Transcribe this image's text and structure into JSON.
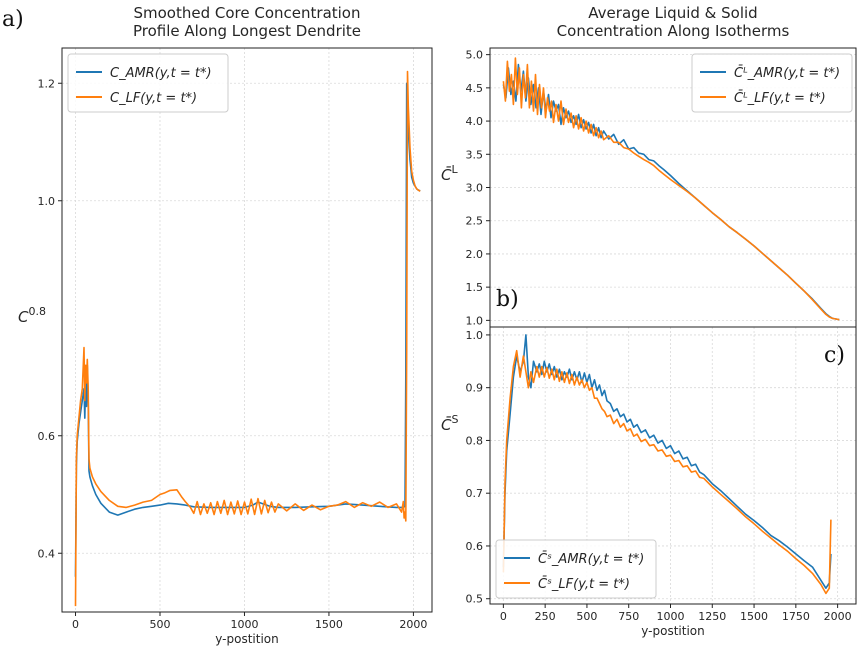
{
  "chart_data": [
    {
      "id": "a",
      "type": "line",
      "panel_label": "a)",
      "title": [
        "Smoothed Core Concentration",
        "Profile Along Longest Dendrite"
      ],
      "xlabel": "y-postition",
      "ylabel": "C",
      "ylabel_sup": "0.8",
      "xlim": [
        -80,
        2110
      ],
      "ylim": [
        0.3,
        1.26
      ],
      "xticks": [
        0,
        500,
        1000,
        1500,
        2000
      ],
      "yticks": [
        0.4,
        0.6,
        1.0,
        1.2
      ],
      "ytick_labels": [
        "0.4",
        "0.6",
        "1.0",
        "1.2"
      ],
      "legend_position": "upper-left",
      "series": [
        {
          "name": "C_AMR(y, t = t*)",
          "legend_label": "C_AMR(y,t = t*)",
          "color": "#1f77b4",
          "x": [
            0,
            5,
            10,
            20,
            30,
            40,
            50,
            55,
            60,
            65,
            70,
            75,
            80,
            85,
            90,
            100,
            120,
            150,
            200,
            250,
            300,
            350,
            400,
            450,
            500,
            550,
            600,
            650,
            700,
            800,
            900,
            1000,
            1050,
            1080,
            1100,
            1150,
            1200,
            1300,
            1400,
            1500,
            1600,
            1700,
            1800,
            1900,
            1940,
            1950,
            1955,
            1960,
            1965,
            1970,
            1980,
            1990,
            2000,
            2010,
            2020,
            2030,
            2040
          ],
          "y": [
            0.36,
            0.55,
            0.59,
            0.62,
            0.64,
            0.66,
            0.68,
            0.63,
            0.7,
            0.65,
            0.72,
            0.66,
            0.54,
            0.53,
            0.525,
            0.515,
            0.5,
            0.485,
            0.47,
            0.465,
            0.47,
            0.475,
            0.478,
            0.48,
            0.482,
            0.485,
            0.484,
            0.482,
            0.479,
            0.478,
            0.478,
            0.478,
            0.482,
            0.487,
            0.485,
            0.48,
            0.478,
            0.478,
            0.479,
            0.48,
            0.484,
            0.482,
            0.48,
            0.478,
            0.478,
            0.48,
            0.7,
            1.2,
            1.18,
            1.12,
            1.07,
            1.04,
            1.03,
            1.025,
            1.02,
            1.018,
            1.017
          ]
        },
        {
          "name": "C_LF(y, t = t*)",
          "legend_label": "C_LF(y,t = t*)",
          "color": "#ff7f0e",
          "x": [
            0,
            5,
            10,
            20,
            30,
            40,
            50,
            55,
            60,
            65,
            70,
            75,
            80,
            85,
            90,
            100,
            120,
            150,
            200,
            250,
            300,
            350,
            400,
            450,
            500,
            530,
            560,
            600,
            630,
            650,
            680,
            700,
            720,
            740,
            760,
            780,
            800,
            820,
            840,
            860,
            880,
            900,
            920,
            940,
            960,
            980,
            1000,
            1020,
            1040,
            1060,
            1080,
            1100,
            1120,
            1140,
            1160,
            1180,
            1200,
            1250,
            1300,
            1350,
            1400,
            1450,
            1500,
            1550,
            1600,
            1650,
            1700,
            1750,
            1800,
            1850,
            1900,
            1930,
            1940,
            1945,
            1950,
            1955,
            1960,
            1965,
            1970,
            1980,
            1990,
            2000,
            2010,
            2020,
            2030,
            2040
          ],
          "y": [
            0.31,
            0.56,
            0.6,
            0.63,
            0.66,
            0.68,
            0.75,
            0.66,
            0.72,
            0.69,
            0.73,
            0.68,
            0.56,
            0.545,
            0.54,
            0.53,
            0.518,
            0.505,
            0.49,
            0.48,
            0.478,
            0.482,
            0.487,
            0.49,
            0.5,
            0.503,
            0.507,
            0.508,
            0.495,
            0.488,
            0.478,
            0.468,
            0.488,
            0.466,
            0.484,
            0.468,
            0.486,
            0.466,
            0.488,
            0.468,
            0.49,
            0.466,
            0.487,
            0.467,
            0.489,
            0.466,
            0.487,
            0.467,
            0.492,
            0.466,
            0.493,
            0.467,
            0.49,
            0.469,
            0.487,
            0.47,
            0.484,
            0.472,
            0.484,
            0.473,
            0.482,
            0.474,
            0.48,
            0.482,
            0.488,
            0.478,
            0.486,
            0.48,
            0.487,
            0.478,
            0.484,
            0.47,
            0.488,
            0.46,
            0.47,
            0.455,
            0.75,
            1.22,
            1.16,
            1.09,
            1.05,
            1.035,
            1.025,
            1.02,
            1.018,
            1.016
          ]
        }
      ]
    },
    {
      "id": "b",
      "type": "line",
      "panel_label": "b)",
      "title": [
        "Average Liquid & Solid",
        "Concentration Along Isotherms"
      ],
      "xlabel": "",
      "ylabel": "C̄",
      "ylabel_sup": "L",
      "xlim": [
        -80,
        2110
      ],
      "ylim": [
        0.9,
        5.1
      ],
      "xticks": [],
      "yticks": [
        1.0,
        1.5,
        2.0,
        2.5,
        3.0,
        3.5,
        4.0,
        4.5,
        5.0
      ],
      "ytick_labels": [
        "1.0",
        "1.5",
        "2.0",
        "2.5",
        "3.0",
        "3.5",
        "4.0",
        "4.5",
        "5.0"
      ],
      "legend_position": "upper-right",
      "series": [
        {
          "name": "C̄L_AMR(y, t = t*)",
          "legend_label": "C̄ᴸ_AMR(y,t = t*)",
          "color": "#1f77b4",
          "x": [
            0,
            15,
            30,
            45,
            60,
            75,
            90,
            105,
            120,
            135,
            150,
            165,
            180,
            195,
            210,
            225,
            240,
            255,
            270,
            285,
            300,
            315,
            330,
            345,
            360,
            375,
            390,
            405,
            420,
            435,
            450,
            465,
            480,
            495,
            510,
            525,
            540,
            555,
            570,
            585,
            600,
            630,
            660,
            690,
            720,
            750,
            780,
            810,
            840,
            870,
            900,
            930,
            960,
            1000,
            1050,
            1100,
            1150,
            1200,
            1250,
            1300,
            1350,
            1400,
            1450,
            1500,
            1550,
            1600,
            1650,
            1700,
            1750,
            1800,
            1850,
            1900,
            1930,
            1950,
            1970,
            1990,
            2010
          ],
          "y": [
            4.55,
            4.35,
            4.8,
            4.4,
            4.6,
            4.3,
            4.85,
            4.45,
            4.75,
            4.3,
            4.65,
            4.25,
            4.55,
            4.2,
            4.5,
            4.1,
            4.45,
            4.15,
            4.4,
            4.05,
            4.3,
            4.15,
            4.25,
            3.95,
            4.2,
            4.05,
            4.15,
            3.98,
            4.08,
            3.95,
            4.1,
            3.9,
            4.02,
            3.88,
            3.98,
            3.82,
            3.95,
            3.78,
            3.9,
            3.75,
            3.85,
            3.73,
            3.8,
            3.65,
            3.72,
            3.58,
            3.6,
            3.52,
            3.5,
            3.42,
            3.4,
            3.33,
            3.27,
            3.18,
            3.06,
            2.95,
            2.84,
            2.73,
            2.62,
            2.52,
            2.41,
            2.32,
            2.22,
            2.12,
            2.01,
            1.9,
            1.79,
            1.68,
            1.56,
            1.44,
            1.32,
            1.18,
            1.1,
            1.06,
            1.03,
            1.02,
            1.01
          ]
        },
        {
          "name": "C̄L_LF(y, t = t*)",
          "legend_label": "C̄ᴸ_LF(y,t = t*)",
          "color": "#ff7f0e",
          "x": [
            0,
            12,
            24,
            36,
            48,
            60,
            72,
            84,
            96,
            108,
            120,
            132,
            144,
            156,
            168,
            180,
            192,
            204,
            216,
            228,
            240,
            252,
            264,
            276,
            288,
            300,
            315,
            330,
            345,
            360,
            375,
            390,
            405,
            420,
            435,
            450,
            465,
            480,
            495,
            510,
            525,
            540,
            555,
            570,
            585,
            600,
            630,
            660,
            690,
            720,
            750,
            780,
            810,
            840,
            870,
            900,
            930,
            960,
            1000,
            1050,
            1100,
            1150,
            1200,
            1250,
            1300,
            1350,
            1400,
            1450,
            1500,
            1550,
            1600,
            1650,
            1700,
            1750,
            1800,
            1850,
            1900,
            1930,
            1950,
            1970,
            1990,
            2010
          ],
          "y": [
            4.6,
            4.3,
            4.9,
            4.45,
            4.7,
            4.25,
            4.95,
            4.4,
            4.8,
            4.2,
            4.7,
            4.35,
            4.85,
            4.2,
            4.6,
            4.15,
            4.7,
            4.1,
            4.55,
            4.2,
            4.5,
            4.05,
            4.35,
            4.15,
            4.3,
            3.98,
            4.25,
            4.0,
            4.3,
            3.95,
            4.18,
            3.98,
            4.12,
            3.9,
            4.08,
            3.88,
            4.05,
            3.85,
            4.0,
            3.82,
            3.95,
            3.78,
            3.9,
            3.75,
            3.85,
            3.72,
            3.78,
            3.68,
            3.68,
            3.6,
            3.58,
            3.52,
            3.47,
            3.42,
            3.38,
            3.33,
            3.26,
            3.2,
            3.12,
            3.03,
            2.94,
            2.84,
            2.73,
            2.62,
            2.52,
            2.41,
            2.32,
            2.22,
            2.12,
            2.01,
            1.9,
            1.79,
            1.68,
            1.56,
            1.44,
            1.31,
            1.17,
            1.09,
            1.05,
            1.03,
            1.02,
            1.01
          ]
        }
      ]
    },
    {
      "id": "c",
      "type": "line",
      "panel_label": "c)",
      "title": [],
      "xlabel": "y-postition",
      "ylabel": "C̄",
      "ylabel_sup": "S",
      "xlim": [
        -80,
        2110
      ],
      "ylim": [
        0.49,
        1.015
      ],
      "xticks": [
        0,
        250,
        500,
        750,
        1000,
        1250,
        1500,
        1750,
        2000
      ],
      "yticks": [
        0.5,
        0.6,
        0.7,
        0.8,
        0.9,
        1.0
      ],
      "ytick_labels": [
        "0.5",
        "0.6",
        "0.7",
        "0.8",
        "0.9",
        "1.0"
      ],
      "legend_position": "lower-left",
      "series": [
        {
          "name": "C̄S_AMR(y, t = t*)",
          "legend_label": "C̄ˢ_AMR(y,t = t*)",
          "color": "#1f77b4",
          "x": [
            0,
            10,
            20,
            40,
            60,
            80,
            100,
            120,
            135,
            150,
            165,
            180,
            200,
            215,
            230,
            245,
            260,
            275,
            290,
            305,
            320,
            335,
            350,
            365,
            380,
            395,
            410,
            425,
            440,
            455,
            470,
            485,
            500,
            515,
            530,
            545,
            560,
            575,
            590,
            605,
            620,
            640,
            660,
            680,
            700,
            720,
            740,
            760,
            780,
            800,
            825,
            850,
            875,
            900,
            925,
            950,
            975,
            1000,
            1025,
            1050,
            1075,
            1100,
            1125,
            1150,
            1175,
            1200,
            1250,
            1300,
            1350,
            1400,
            1450,
            1500,
            1550,
            1600,
            1650,
            1700,
            1750,
            1800,
            1850,
            1900,
            1930,
            1950,
            1960
          ],
          "y": [
            0.56,
            0.7,
            0.78,
            0.85,
            0.92,
            0.96,
            0.93,
            0.95,
            1.0,
            0.92,
            0.9,
            0.95,
            0.93,
            0.945,
            0.925,
            0.95,
            0.93,
            0.945,
            0.925,
            0.94,
            0.92,
            0.935,
            0.915,
            0.93,
            0.92,
            0.935,
            0.915,
            0.93,
            0.915,
            0.93,
            0.91,
            0.928,
            0.91,
            0.925,
            0.9,
            0.915,
            0.895,
            0.905,
            0.885,
            0.895,
            0.875,
            0.87,
            0.855,
            0.86,
            0.845,
            0.85,
            0.835,
            0.84,
            0.825,
            0.83,
            0.815,
            0.82,
            0.805,
            0.81,
            0.795,
            0.8,
            0.785,
            0.79,
            0.775,
            0.78,
            0.765,
            0.768,
            0.752,
            0.755,
            0.74,
            0.735,
            0.718,
            0.705,
            0.69,
            0.675,
            0.66,
            0.648,
            0.635,
            0.62,
            0.61,
            0.598,
            0.585,
            0.572,
            0.56,
            0.535,
            0.52,
            0.53,
            0.585
          ]
        },
        {
          "name": "C̄S_LF(y, t = t*)",
          "legend_label": "C̄ˢ_LF(y,t = t*)",
          "color": "#ff7f0e",
          "x": [
            0,
            10,
            20,
            40,
            60,
            80,
            100,
            120,
            135,
            150,
            165,
            180,
            200,
            215,
            230,
            245,
            260,
            275,
            290,
            305,
            320,
            335,
            350,
            365,
            380,
            395,
            410,
            425,
            440,
            455,
            470,
            485,
            500,
            515,
            530,
            545,
            560,
            575,
            590,
            605,
            620,
            640,
            660,
            680,
            700,
            720,
            740,
            760,
            780,
            800,
            825,
            850,
            875,
            900,
            925,
            950,
            975,
            1000,
            1025,
            1050,
            1075,
            1100,
            1125,
            1150,
            1175,
            1200,
            1250,
            1300,
            1350,
            1400,
            1450,
            1500,
            1550,
            1600,
            1650,
            1700,
            1750,
            1800,
            1850,
            1900,
            1930,
            1950,
            1960
          ],
          "y": [
            0.55,
            0.72,
            0.8,
            0.88,
            0.94,
            0.97,
            0.92,
            0.96,
            0.93,
            0.9,
            0.93,
            0.91,
            0.94,
            0.92,
            0.94,
            0.92,
            0.938,
            0.918,
            0.935,
            0.915,
            0.935,
            0.912,
            0.93,
            0.91,
            0.928,
            0.908,
            0.925,
            0.905,
            0.92,
            0.905,
            0.915,
            0.9,
            0.91,
            0.895,
            0.9,
            0.88,
            0.88,
            0.87,
            0.86,
            0.855,
            0.845,
            0.848,
            0.832,
            0.84,
            0.825,
            0.832,
            0.818,
            0.822,
            0.808,
            0.812,
            0.798,
            0.802,
            0.79,
            0.792,
            0.78,
            0.782,
            0.77,
            0.772,
            0.76,
            0.762,
            0.75,
            0.752,
            0.74,
            0.742,
            0.73,
            0.728,
            0.712,
            0.698,
            0.684,
            0.67,
            0.655,
            0.642,
            0.628,
            0.615,
            0.602,
            0.59,
            0.576,
            0.563,
            0.548,
            0.527,
            0.51,
            0.52,
            0.65
          ]
        }
      ]
    }
  ]
}
